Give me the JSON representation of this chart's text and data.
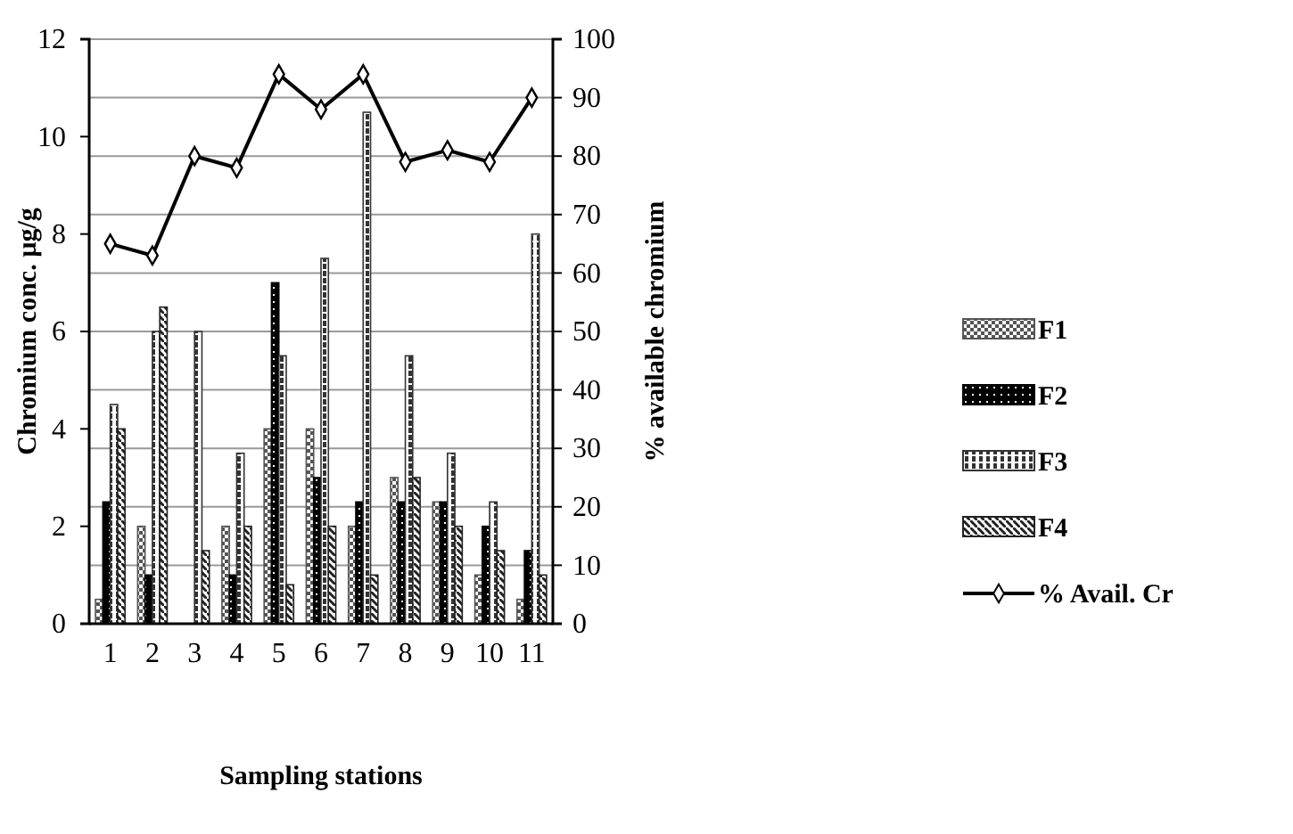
{
  "chart_data": {
    "type": "bar",
    "xlabel": "Sampling stations",
    "ylabel": "Chromium conc. µg/g",
    "y2label": "% available chromium",
    "categories": [
      "1",
      "2",
      "3",
      "4",
      "5",
      "6",
      "7",
      "8",
      "9",
      "10",
      "11"
    ],
    "series": [
      {
        "name": "F1",
        "color": "#555555",
        "values": [
          0.5,
          2.0,
          0,
          2.0,
          4.0,
          4.0,
          2.0,
          3.0,
          2.5,
          1.0,
          0.5
        ]
      },
      {
        "name": "F2",
        "color": "#000000",
        "values": [
          2.5,
          1.0,
          0,
          1.0,
          7.0,
          3.0,
          2.5,
          2.5,
          2.5,
          2.0,
          1.5
        ]
      },
      {
        "name": "F3",
        "color": "#333333",
        "values": [
          4.5,
          6.0,
          6.0,
          3.5,
          5.5,
          7.5,
          10.5,
          5.5,
          3.5,
          2.5,
          8.0
        ]
      },
      {
        "name": "F4",
        "color": "#222222",
        "values": [
          4.0,
          6.5,
          1.5,
          2.0,
          0.8,
          2.0,
          1.0,
          3.0,
          2.0,
          1.5,
          1.0
        ]
      },
      {
        "name": "% Avail. Cr",
        "type": "line",
        "axis": "y2",
        "color": "#000000",
        "values": [
          65,
          63,
          80,
          78,
          94,
          88,
          94,
          79,
          81,
          79,
          90
        ]
      }
    ],
    "ylim": [
      0,
      12
    ],
    "yticks": [
      0,
      2,
      4,
      6,
      8,
      10,
      12
    ],
    "y2lim": [
      0,
      100
    ],
    "y2ticks": [
      0,
      10,
      20,
      30,
      40,
      50,
      60,
      70,
      80,
      90,
      100
    ],
    "grid": "y2",
    "legend": "right",
    "marker": "diamond"
  }
}
